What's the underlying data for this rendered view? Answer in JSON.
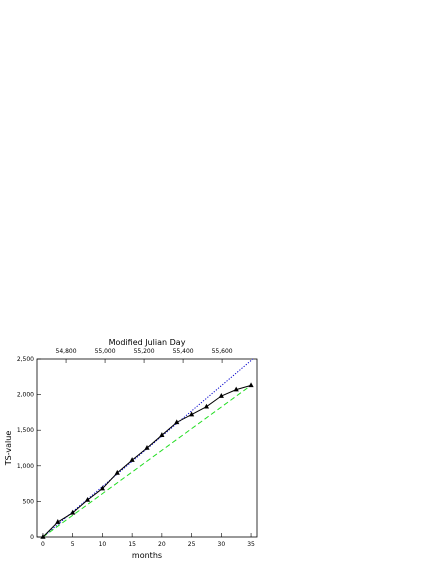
{
  "chart_data": {
    "type": "line",
    "x2label": "Modified Julian Day",
    "xlabel": "months",
    "ylabel": "TS-value",
    "xlim": [
      -1,
      36
    ],
    "xticks": [
      0,
      5,
      10,
      15,
      20,
      25,
      30,
      35
    ],
    "x2lim": [
      54651,
      55779
    ],
    "x2ticks": [
      {
        "value": 54800,
        "label": "54,800"
      },
      {
        "value": 55000,
        "label": "55,000"
      },
      {
        "value": 55200,
        "label": "55,200"
      },
      {
        "value": 55400,
        "label": "55,400"
      },
      {
        "value": 55600,
        "label": "55,600"
      }
    ],
    "ylim": [
      0,
      2500
    ],
    "yticks": [
      0,
      500,
      {
        "value": 1000,
        "label": "1,000"
      },
      {
        "value": 1500,
        "label": "1,500"
      },
      {
        "value": 2000,
        "label": "2,000"
      },
      {
        "value": 2500,
        "label": "2,500"
      }
    ],
    "series": [
      {
        "color": "#0000cc",
        "style": "dotted",
        "x": [
          0,
          35.3
        ],
        "values": [
          0,
          2500
        ]
      },
      {
        "color": "#22dd22",
        "style": "dashed",
        "x": [
          0,
          35
        ],
        "values": [
          0,
          2130
        ]
      },
      {
        "color": "#000000",
        "style": "solid",
        "marker": "triangle",
        "x": [
          0,
          2.5,
          5,
          7.5,
          10,
          12.5,
          15,
          17.5,
          20,
          22.5,
          25,
          27.5,
          30,
          32.5,
          35
        ],
        "values": [
          0,
          210,
          340,
          520,
          680,
          900,
          1080,
          1250,
          1430,
          1610,
          1720,
          1830,
          1980,
          2070,
          2130
        ]
      }
    ]
  }
}
